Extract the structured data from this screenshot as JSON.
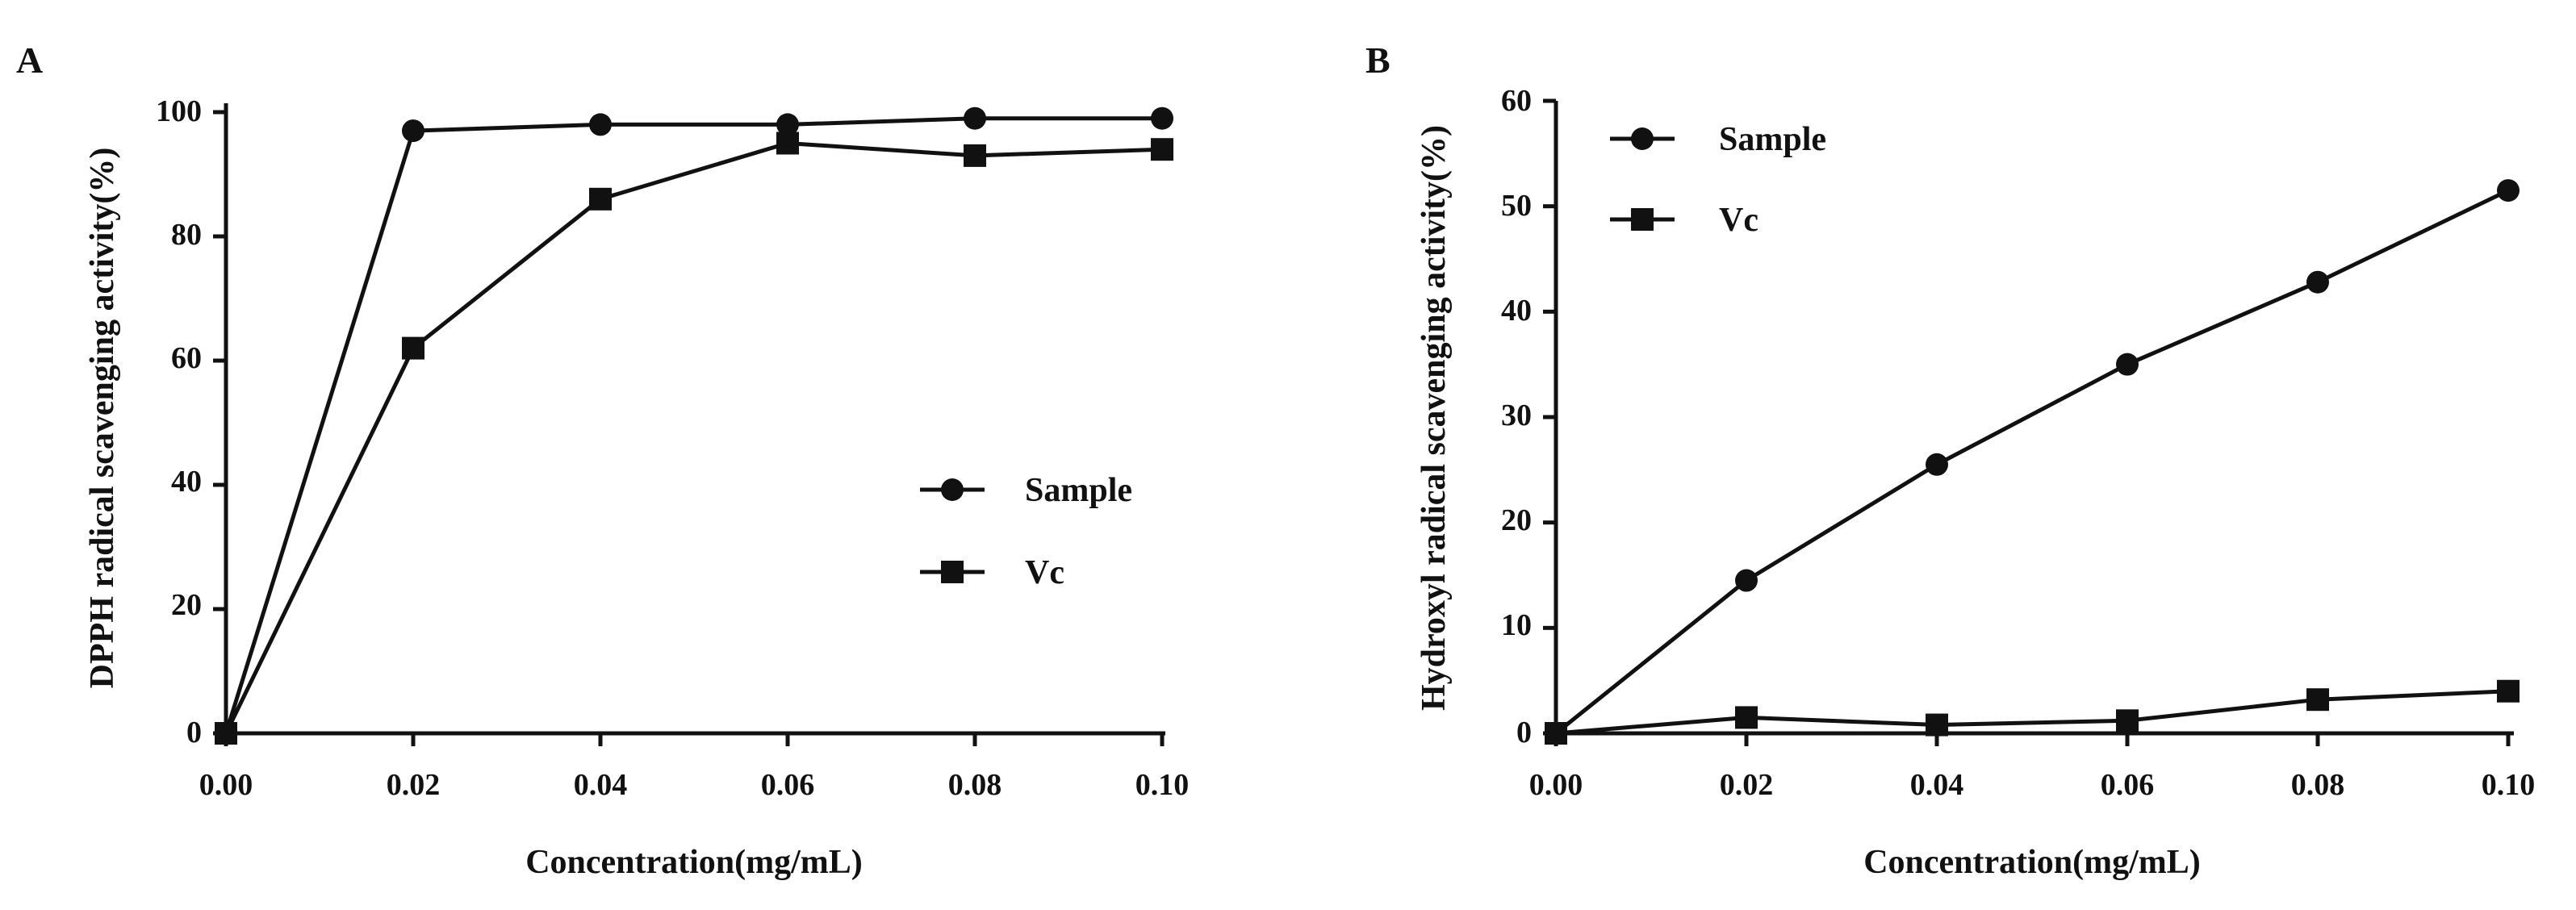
{
  "chart_data": [
    {
      "type": "line",
      "panel_label": "A",
      "title": "",
      "xlabel": "Concentration(mg/mL)",
      "ylabel": "DPPH radical scavenging activity(%)",
      "xlim": [
        0,
        0.1
      ],
      "ylim": [
        0,
        100
      ],
      "x_ticks": [
        0.0,
        0.02,
        0.04,
        0.06,
        0.08,
        0.1
      ],
      "x_tick_labels": [
        "0.00",
        "0.02",
        "0.04",
        "0.06",
        "0.08",
        "0.10"
      ],
      "y_ticks": [
        0,
        20,
        40,
        60,
        80,
        100
      ],
      "y_tick_labels": [
        "0",
        "20",
        "40",
        "60",
        "80",
        "100"
      ],
      "grid": false,
      "legend_position": "center-right",
      "x": [
        0.0,
        0.02,
        0.04,
        0.06,
        0.08,
        0.1
      ],
      "series": [
        {
          "name": "Sample",
          "marker": "circle",
          "values": [
            0,
            97,
            98,
            98,
            99,
            99
          ]
        },
        {
          "name": "Vc",
          "marker": "square",
          "values": [
            0,
            62,
            86,
            95,
            93,
            94
          ]
        }
      ]
    },
    {
      "type": "line",
      "panel_label": "B",
      "title": "",
      "xlabel": "Concentration(mg/mL)",
      "ylabel": "Hydroxyl radical scavenging activity(%)",
      "xlim": [
        0,
        0.1
      ],
      "ylim": [
        0,
        60
      ],
      "x_ticks": [
        0.0,
        0.02,
        0.04,
        0.06,
        0.08,
        0.1
      ],
      "x_tick_labels": [
        "0.00",
        "0.02",
        "0.04",
        "0.06",
        "0.08",
        "0.10"
      ],
      "y_ticks": [
        0,
        10,
        20,
        30,
        40,
        50,
        60
      ],
      "y_tick_labels": [
        "0",
        "10",
        "20",
        "30",
        "40",
        "50",
        "60"
      ],
      "grid": false,
      "legend_position": "top-left",
      "x": [
        0.0,
        0.02,
        0.04,
        0.06,
        0.08,
        0.1
      ],
      "series": [
        {
          "name": "Sample",
          "marker": "circle",
          "values": [
            0,
            14.5,
            25.5,
            35,
            42.8,
            51.5
          ]
        },
        {
          "name": "Vc",
          "marker": "square",
          "values": [
            0,
            1.5,
            0.8,
            1.2,
            3.2,
            4.0
          ]
        }
      ]
    }
  ]
}
